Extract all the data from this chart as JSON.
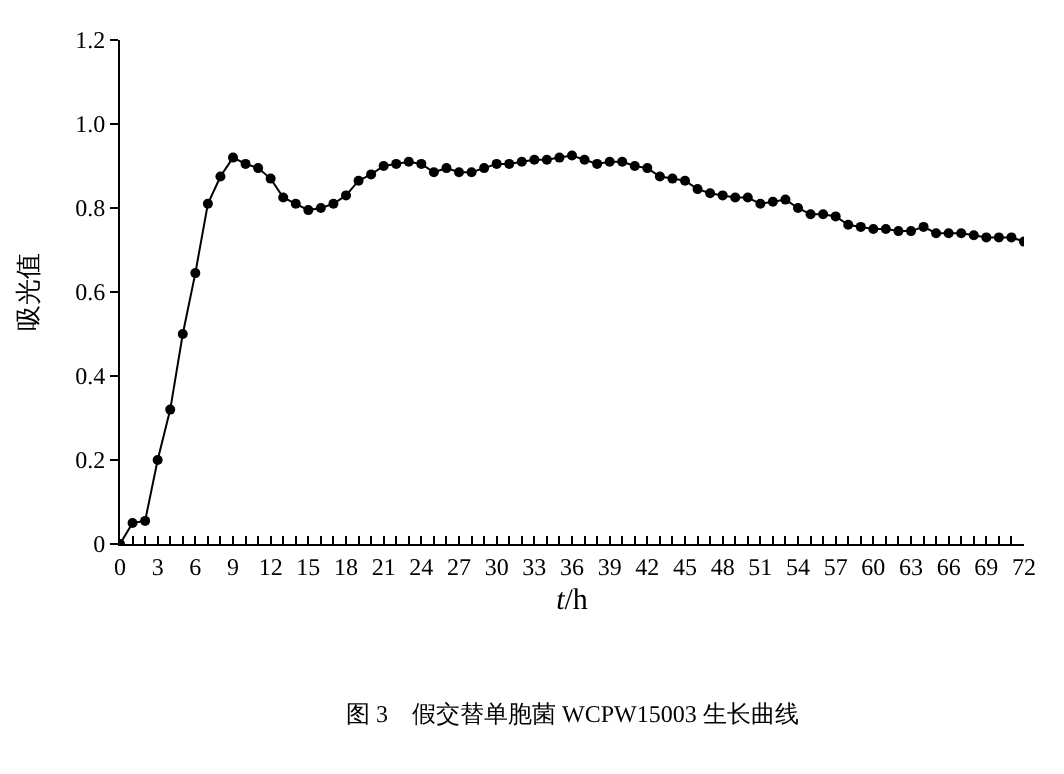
{
  "chart_data": {
    "type": "line",
    "title": "图 3　假交替单胞菌 WCPW15003 生长曲线",
    "xlabel": "t/h",
    "ylabel": "吸光值",
    "x": [
      0,
      1,
      2,
      3,
      4,
      5,
      6,
      7,
      8,
      9,
      10,
      11,
      12,
      13,
      14,
      15,
      16,
      17,
      18,
      19,
      20,
      21,
      22,
      23,
      24,
      25,
      26,
      27,
      28,
      29,
      30,
      31,
      32,
      33,
      34,
      35,
      36,
      37,
      38,
      39,
      40,
      41,
      42,
      43,
      44,
      45,
      46,
      47,
      48,
      49,
      50,
      51,
      52,
      53,
      54,
      55,
      56,
      57,
      58,
      59,
      60,
      61,
      62,
      63,
      64,
      65,
      66,
      67,
      68,
      69,
      70,
      71,
      72
    ],
    "series": [
      {
        "color": "#000000",
        "values": [
          0,
          0.05,
          0.055,
          0.2,
          0.32,
          0.5,
          0.645,
          0.81,
          0.875,
          0.92,
          0.905,
          0.895,
          0.87,
          0.825,
          0.81,
          0.795,
          0.8,
          0.81,
          0.83,
          0.865,
          0.88,
          0.9,
          0.905,
          0.91,
          0.905,
          0.885,
          0.895,
          0.885,
          0.885,
          0.895,
          0.905,
          0.905,
          0.91,
          0.915,
          0.915,
          0.92,
          0.925,
          0.915,
          0.905,
          0.91,
          0.91,
          0.9,
          0.895,
          0.875,
          0.87,
          0.865,
          0.845,
          0.835,
          0.83,
          0.825,
          0.825,
          0.81,
          0.815,
          0.82,
          0.8,
          0.785,
          0.785,
          0.78,
          0.76,
          0.755,
          0.75,
          0.75,
          0.745,
          0.745,
          0.755,
          0.74,
          0.74,
          0.74,
          0.735,
          0.73,
          0.73,
          0.73,
          0.72
        ]
      }
    ],
    "xlim": [
      0,
      72
    ],
    "xticks": [
      0,
      3,
      6,
      9,
      12,
      15,
      18,
      21,
      24,
      27,
      30,
      33,
      36,
      39,
      42,
      45,
      48,
      51,
      54,
      57,
      60,
      63,
      66,
      69,
      72
    ],
    "ylim": [
      0,
      1.2
    ],
    "yticks": [
      0,
      {
        "value": 0.2,
        "label": "0.2"
      },
      {
        "value": 0.4,
        "label": "0.4"
      },
      {
        "value": 0.6,
        "label": "0.6"
      },
      {
        "value": 0.8,
        "label": "0.8"
      },
      {
        "value": 1,
        "label": "1.0"
      },
      {
        "value": 1.2,
        "label": "1.2"
      }
    ],
    "legend": false,
    "marker": "circle",
    "line_style": "solid"
  }
}
